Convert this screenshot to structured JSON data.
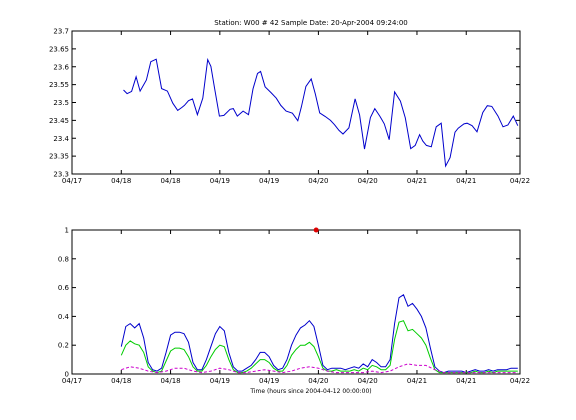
{
  "title": "Station: W00 # 42  Sample Date: 20-Apr-2004 09:24:00",
  "xlabel_bottom": "Time (hours since 2004-04-12 00:00:00)",
  "colors": {
    "primary_line": "#0000cc",
    "secondary_line": "#00cc00",
    "tertiary_line": "#cc00cc",
    "marker": "#dd0000",
    "axis": "#000000"
  },
  "chart_data": [
    {
      "type": "line",
      "ylabel": "",
      "ylim": [
        23.3,
        23.7
      ],
      "yticks": [
        23.3,
        23.35,
        23.4,
        23.45,
        23.5,
        23.55,
        23.6,
        23.65,
        23.7
      ],
      "ytick_labels": [
        "23.3",
        "23.35",
        "23.4",
        "23.45",
        "23.5",
        "23.55",
        "23.6",
        "23.65",
        "23.7"
      ],
      "xlim": [
        0,
        100
      ],
      "xticks": [
        0,
        11,
        22,
        33,
        44,
        55,
        66,
        77,
        88,
        100
      ],
      "xtick_labels": [
        "04/17",
        "04/18",
        "04/18",
        "04/19",
        "04/19",
        "04/20",
        "04/20",
        "04/21",
        "04/21",
        "04/22"
      ],
      "grid": false,
      "series": [
        {
          "color": "#0000cc",
          "x": [
            11.5,
            12.3,
            13.3,
            14.3,
            15.2,
            16.6,
            17.6,
            18.8,
            20.0,
            21.3,
            22.5,
            23.6,
            24.5,
            25.1,
            26.0,
            26.9,
            28.0,
            29.2,
            30.3,
            31.0,
            31.8,
            32.9,
            33.9,
            35.3,
            36.0,
            36.9,
            38.2,
            39.4,
            40.4,
            41.4,
            42.1,
            43.1,
            44.4,
            45.6,
            46.6,
            47.8,
            49.2,
            50.4,
            51.2,
            52.2,
            53.4,
            54.3,
            55.3,
            56.5,
            57.7,
            58.6,
            59.6,
            60.5,
            61.8,
            63.2,
            64.2,
            65.3,
            66.6,
            67.6,
            68.7,
            69.7,
            70.8,
            72.0,
            73.3,
            74.4,
            75.6,
            76.6,
            77.6,
            78.3,
            79.1,
            80.2,
            81.3,
            82.4,
            83.4,
            84.4,
            85.5,
            86.2,
            87.5,
            88.2,
            89.3,
            90.4,
            91.7,
            92.7,
            93.7,
            95.1,
            96.2,
            97.3,
            98.5,
            99.5
          ],
          "y": [
            23.535,
            23.525,
            23.531,
            23.572,
            23.532,
            23.563,
            23.614,
            23.621,
            23.539,
            23.532,
            23.498,
            23.478,
            23.486,
            23.492,
            23.505,
            23.51,
            23.466,
            23.512,
            23.62,
            23.601,
            23.541,
            23.462,
            23.464,
            23.481,
            23.483,
            23.462,
            23.476,
            23.466,
            23.538,
            23.581,
            23.587,
            23.544,
            23.528,
            23.512,
            23.492,
            23.476,
            23.47,
            23.449,
            23.488,
            23.545,
            23.566,
            23.524,
            23.471,
            23.461,
            23.45,
            23.438,
            23.422,
            23.412,
            23.429,
            23.51,
            23.465,
            23.37,
            23.458,
            23.483,
            23.462,
            23.44,
            23.396,
            23.53,
            23.504,
            23.457,
            23.371,
            23.38,
            23.41,
            23.392,
            23.38,
            23.376,
            23.432,
            23.442,
            23.322,
            23.346,
            23.417,
            23.428,
            23.44,
            23.442,
            23.435,
            23.418,
            23.472,
            23.491,
            23.489,
            23.462,
            23.432,
            23.437,
            23.462,
            23.435
          ]
        }
      ]
    },
    {
      "type": "line",
      "ylabel": "",
      "ylim": [
        0,
        1
      ],
      "yticks": [
        0,
        0.2,
        0.4,
        0.6,
        0.8,
        1
      ],
      "ytick_labels": [
        "0",
        "0.2",
        "0.4",
        "0.6",
        "0.8",
        "1"
      ],
      "xlim": [
        0,
        100
      ],
      "xticks": [
        0,
        11,
        22,
        33,
        44,
        55,
        66,
        77,
        88,
        100
      ],
      "xtick_labels": [
        "04/17",
        "04/18",
        "04/18",
        "04/19",
        "04/19",
        "04/20",
        "04/20",
        "04/21",
        "04/21",
        "04/22"
      ],
      "grid": false,
      "xlabel": "Time (hours since 2004-04-12 00:00:00)",
      "series": [
        {
          "color": "#0000cc",
          "style": "solid",
          "x": [
            11.0,
            12.0,
            13.0,
            14.0,
            15.0,
            16.0,
            17.0,
            18.0,
            19.0,
            20.0,
            21.0,
            22.0,
            23.0,
            24.0,
            25.0,
            26.0,
            27.0,
            28.0,
            29.0,
            30.0,
            31.0,
            32.0,
            33.0,
            34.0,
            35.0,
            36.0,
            37.0,
            38.0,
            39.0,
            40.0,
            41.0,
            42.0,
            43.0,
            44.0,
            45.0,
            46.0,
            47.0,
            48.0,
            49.0,
            50.0,
            51.0,
            52.0,
            53.0,
            54.0,
            55.0,
            56.0,
            57.0,
            58.0,
            59.0,
            60.0,
            61.0,
            62.0,
            63.0,
            64.0,
            65.0,
            66.0,
            67.0,
            68.0,
            69.0,
            70.0,
            71.0,
            72.0,
            73.0,
            74.0,
            75.0,
            76.0,
            77.0,
            78.0,
            79.0,
            80.0,
            81.0,
            82.0,
            83.0,
            84.0,
            85.0,
            86.0,
            87.0,
            88.0,
            89.0,
            90.0,
            91.0,
            92.0,
            93.0,
            94.0,
            95.0,
            96.0,
            97.0,
            98.0,
            99.0,
            99.5
          ],
          "y": [
            0.19,
            0.33,
            0.35,
            0.32,
            0.35,
            0.25,
            0.08,
            0.03,
            0.02,
            0.04,
            0.15,
            0.27,
            0.29,
            0.29,
            0.28,
            0.22,
            0.08,
            0.03,
            0.03,
            0.1,
            0.19,
            0.28,
            0.33,
            0.3,
            0.15,
            0.05,
            0.02,
            0.02,
            0.04,
            0.06,
            0.1,
            0.15,
            0.15,
            0.12,
            0.06,
            0.03,
            0.04,
            0.1,
            0.2,
            0.27,
            0.32,
            0.34,
            0.37,
            0.33,
            0.2,
            0.06,
            0.03,
            0.04,
            0.04,
            0.04,
            0.03,
            0.04,
            0.05,
            0.04,
            0.07,
            0.05,
            0.1,
            0.08,
            0.05,
            0.05,
            0.1,
            0.35,
            0.53,
            0.55,
            0.47,
            0.49,
            0.45,
            0.4,
            0.32,
            0.18,
            0.05,
            0.02,
            0.01,
            0.02,
            0.02,
            0.02,
            0.02,
            0.01,
            0.02,
            0.03,
            0.02,
            0.02,
            0.03,
            0.02,
            0.03,
            0.03,
            0.03,
            0.04,
            0.04,
            0.04
          ]
        },
        {
          "color": "#00cc00",
          "style": "solid",
          "x": [
            11.0,
            12.0,
            13.0,
            14.0,
            15.0,
            16.0,
            17.0,
            18.0,
            19.0,
            20.0,
            21.0,
            22.0,
            23.0,
            24.0,
            25.0,
            26.0,
            27.0,
            28.0,
            29.0,
            30.0,
            31.0,
            32.0,
            33.0,
            34.0,
            35.0,
            36.0,
            37.0,
            38.0,
            39.0,
            40.0,
            41.0,
            42.0,
            43.0,
            44.0,
            45.0,
            46.0,
            47.0,
            48.0,
            49.0,
            50.0,
            51.0,
            52.0,
            53.0,
            54.0,
            55.0,
            56.0,
            57.0,
            58.0,
            59.0,
            60.0,
            61.0,
            62.0,
            63.0,
            64.0,
            65.0,
            66.0,
            67.0,
            68.0,
            69.0,
            70.0,
            71.0,
            72.0,
            73.0,
            74.0,
            75.0,
            76.0,
            77.0,
            78.0,
            79.0,
            80.0,
            81.0,
            82.0,
            83.0,
            84.0,
            85.0,
            86.0,
            87.0,
            88.0,
            89.0,
            90.0,
            91.0,
            92.0,
            93.0,
            94.0,
            95.0,
            96.0,
            97.0,
            98.0,
            99.0,
            99.5
          ],
          "y": [
            0.13,
            0.2,
            0.23,
            0.21,
            0.2,
            0.15,
            0.05,
            0.02,
            0.01,
            0.02,
            0.09,
            0.16,
            0.18,
            0.18,
            0.17,
            0.12,
            0.05,
            0.02,
            0.02,
            0.06,
            0.12,
            0.17,
            0.2,
            0.19,
            0.1,
            0.03,
            0.01,
            0.01,
            0.02,
            0.04,
            0.07,
            0.1,
            0.1,
            0.08,
            0.04,
            0.02,
            0.02,
            0.06,
            0.13,
            0.17,
            0.2,
            0.2,
            0.22,
            0.19,
            0.12,
            0.04,
            0.02,
            0.02,
            0.03,
            0.02,
            0.02,
            0.02,
            0.03,
            0.02,
            0.04,
            0.03,
            0.06,
            0.05,
            0.03,
            0.03,
            0.06,
            0.24,
            0.36,
            0.37,
            0.3,
            0.31,
            0.28,
            0.25,
            0.2,
            0.11,
            0.03,
            0.01,
            0.01,
            0.01,
            0.01,
            0.01,
            0.01,
            0.01,
            0.01,
            0.02,
            0.01,
            0.01,
            0.02,
            0.01,
            0.02,
            0.02,
            0.02,
            0.02,
            0.02,
            0.02
          ]
        },
        {
          "color": "#cc00cc",
          "style": "dashed",
          "x": [
            11.0,
            13.0,
            15.0,
            17.0,
            19.0,
            21.0,
            23.0,
            25.0,
            27.0,
            29.0,
            31.0,
            33.0,
            35.0,
            37.0,
            39.0,
            41.0,
            43.0,
            45.0,
            47.0,
            49.0,
            51.0,
            53.0,
            55.0,
            57.0,
            59.0,
            61.0,
            63.0,
            65.0,
            67.0,
            69.0,
            71.0,
            73.0,
            75.0,
            77.0,
            79.0,
            81.0,
            83.0,
            85.0,
            87.0,
            89.0,
            91.0,
            93.0,
            95.0,
            97.0,
            99.5
          ],
          "y": [
            0.03,
            0.05,
            0.04,
            0.02,
            0.01,
            0.02,
            0.04,
            0.04,
            0.02,
            0.01,
            0.02,
            0.04,
            0.03,
            0.01,
            0.01,
            0.02,
            0.03,
            0.02,
            0.01,
            0.02,
            0.04,
            0.05,
            0.04,
            0.02,
            0.01,
            0.01,
            0.01,
            0.01,
            0.02,
            0.01,
            0.02,
            0.05,
            0.07,
            0.06,
            0.06,
            0.03,
            0.01,
            0.01,
            0.01,
            0.01,
            0.01,
            0.01,
            0.01,
            0.01,
            0.01
          ]
        }
      ],
      "points": [
        {
          "x": 54.5,
          "y": 1.0,
          "color": "#dd0000"
        }
      ]
    }
  ]
}
